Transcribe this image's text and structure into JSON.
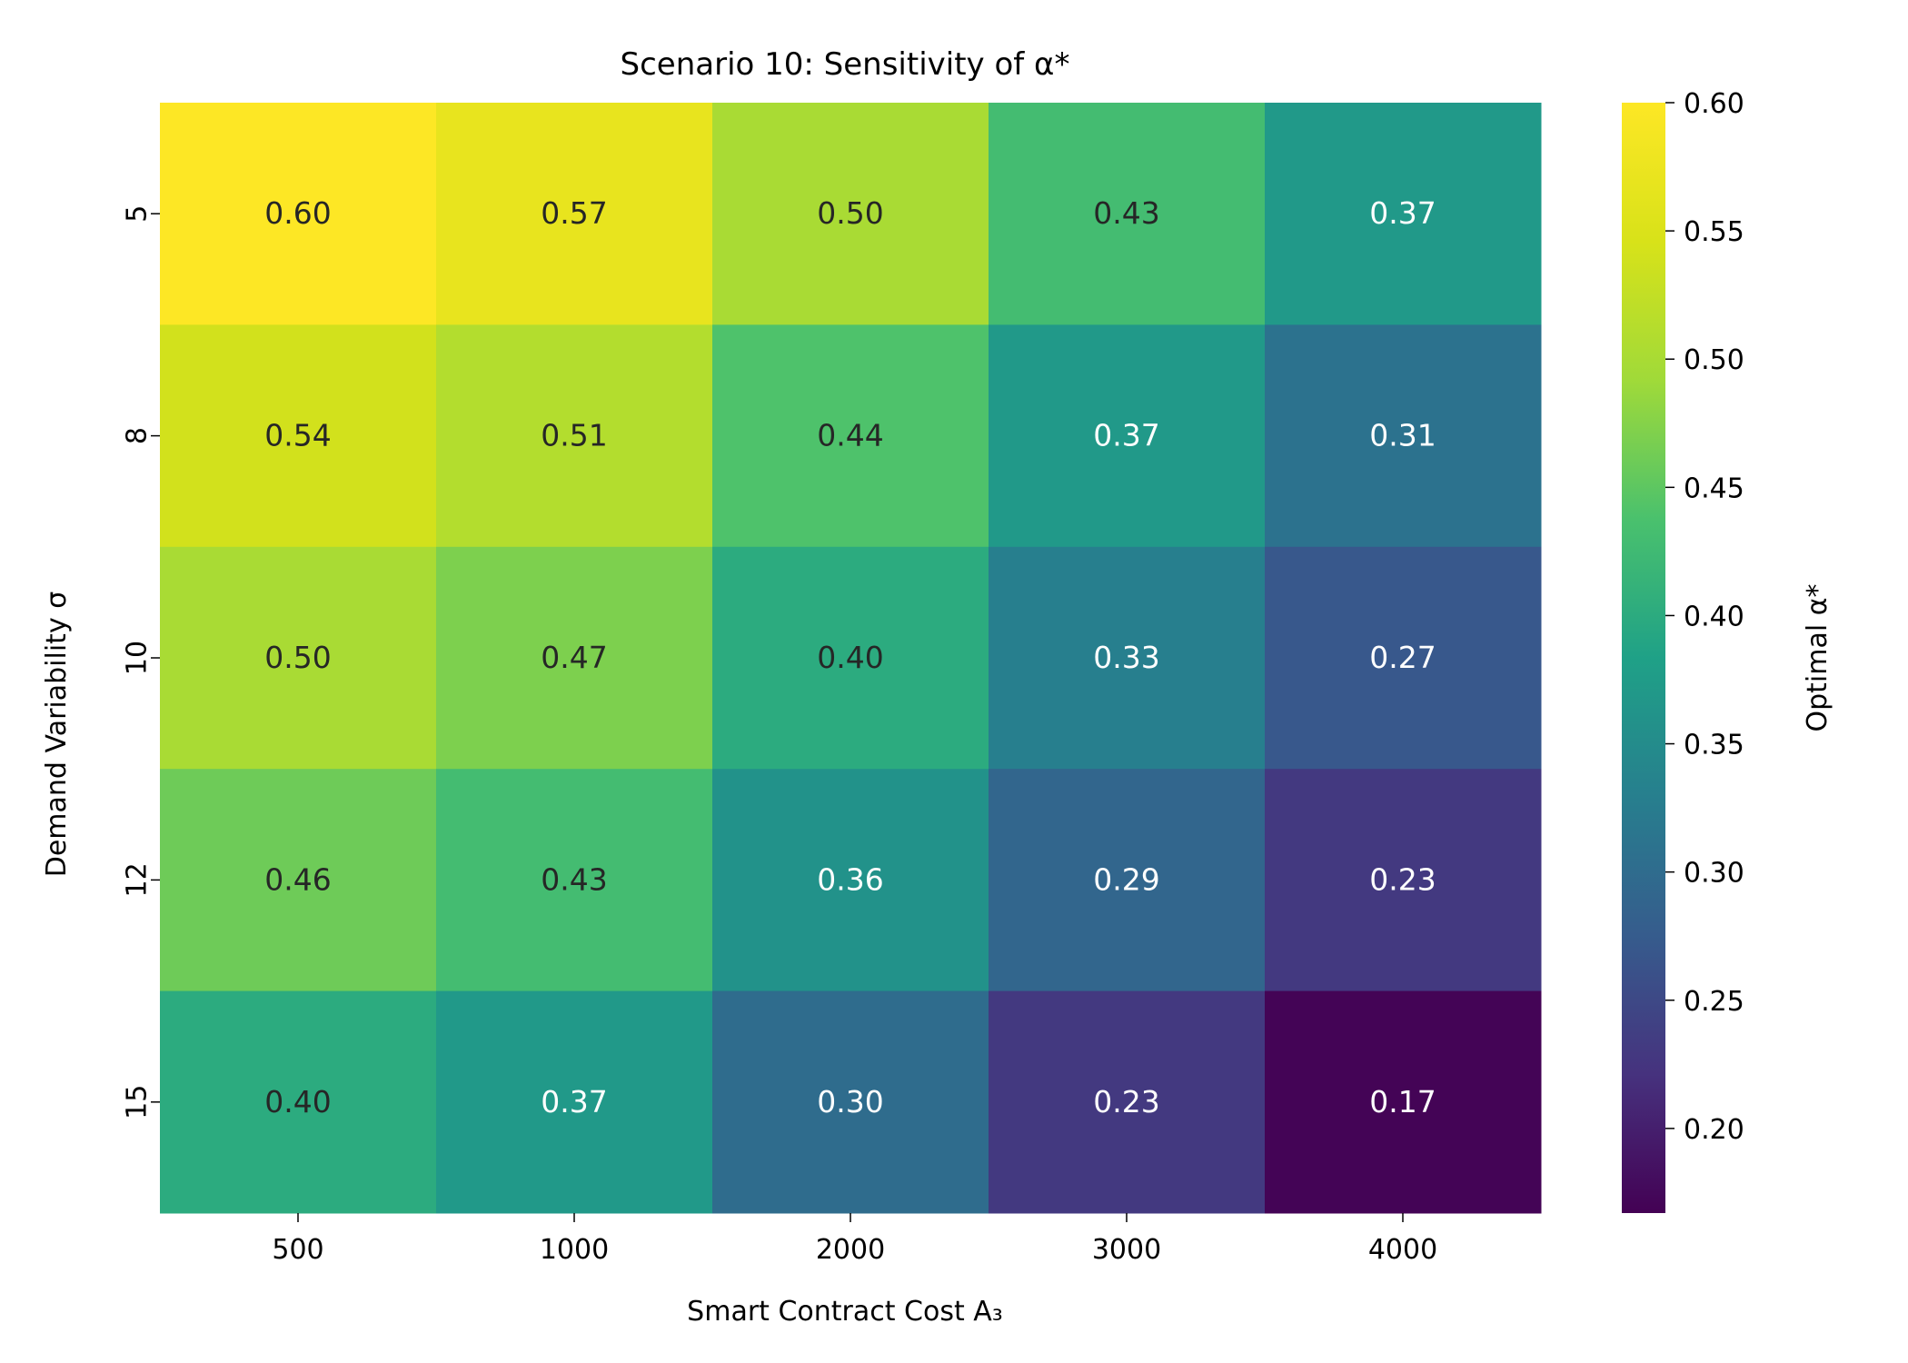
{
  "chart_data": {
    "type": "heatmap",
    "title": "Scenario 10: Sensitivity of α*",
    "xlabel": "Smart Contract Cost A₃",
    "ylabel": "Demand Variability σ",
    "x_categories": [
      "500",
      "1000",
      "2000",
      "3000",
      "4000"
    ],
    "y_categories": [
      "5",
      "8",
      "10",
      "12",
      "15"
    ],
    "values": [
      [
        0.6,
        0.57,
        0.5,
        0.43,
        0.37
      ],
      [
        0.54,
        0.51,
        0.44,
        0.37,
        0.31
      ],
      [
        0.5,
        0.47,
        0.4,
        0.33,
        0.27
      ],
      [
        0.46,
        0.43,
        0.36,
        0.29,
        0.23
      ],
      [
        0.4,
        0.37,
        0.3,
        0.23,
        0.17
      ]
    ],
    "value_format": "0.00",
    "colormap": "viridis",
    "colorbar": {
      "label": "Optimal α*",
      "range": [
        0.167,
        0.6
      ],
      "ticks": [
        "0.60",
        "0.55",
        "0.50",
        "0.45",
        "0.40",
        "0.35",
        "0.30",
        "0.25",
        "0.20"
      ],
      "tick_values": [
        0.6,
        0.55,
        0.5,
        0.45,
        0.4,
        0.35,
        0.3,
        0.25,
        0.2
      ]
    }
  }
}
